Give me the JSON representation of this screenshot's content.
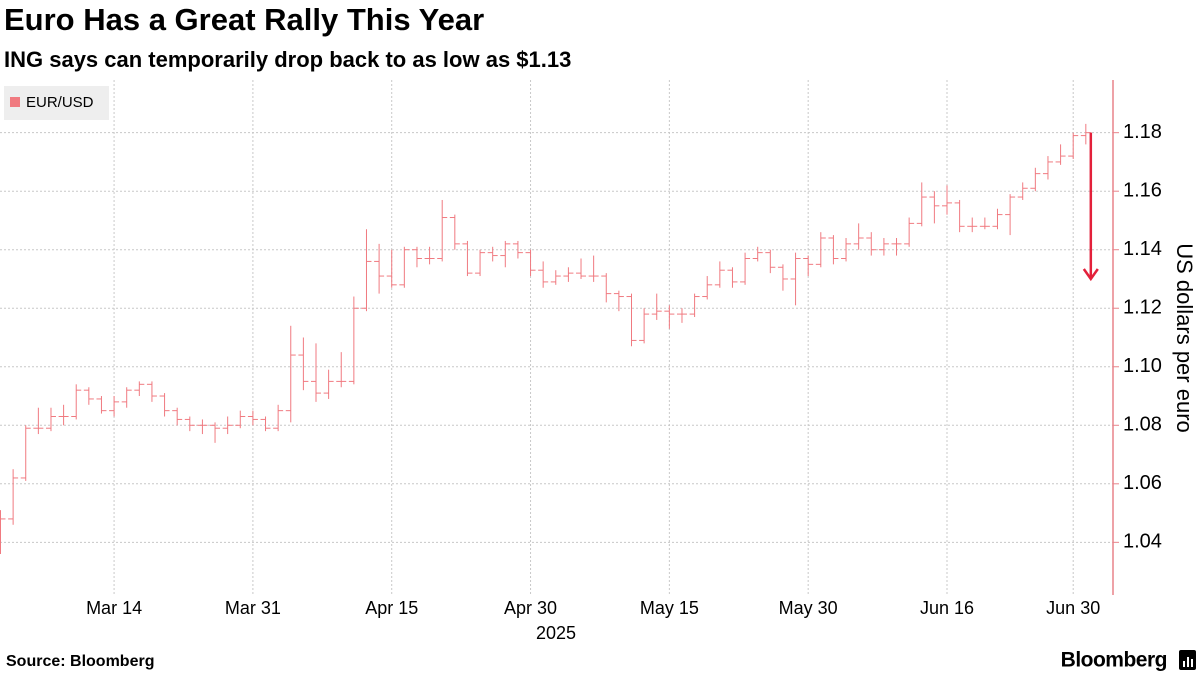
{
  "chart_data": {
    "type": "ohlc",
    "title": "Euro Has a Great Rally This Year",
    "subtitle": "ING says can temporarily drop back to as low as $1.13",
    "ylabel": "US dollars per euro",
    "xlabel": "2025",
    "source": "Source: Bloomberg",
    "brand": "Bloomberg",
    "axis_color": "#e8838a",
    "grid": true,
    "legend": "top-left",
    "ylim": [
      1.022,
      1.198
    ],
    "yticks": [
      1.04,
      1.06,
      1.08,
      1.1,
      {
        "value": 1.1,
        "label": "1.10"
      },
      1.12,
      1.14,
      1.16,
      1.18
    ],
    "x": [
      "2025-03-03",
      "2025-03-04",
      "2025-03-05",
      "2025-03-06",
      "2025-03-07",
      "2025-03-10",
      "2025-03-11",
      "2025-03-12",
      "2025-03-13",
      "2025-03-14",
      "2025-03-17",
      "2025-03-18",
      "2025-03-19",
      "2025-03-20",
      "2025-03-21",
      "2025-03-24",
      "2025-03-25",
      "2025-03-26",
      "2025-03-27",
      "2025-03-28",
      "2025-03-31",
      "2025-04-01",
      "2025-04-02",
      "2025-04-03",
      "2025-04-04",
      "2025-04-07",
      "2025-04-08",
      "2025-04-09",
      "2025-04-10",
      "2025-04-11",
      "2025-04-14",
      "2025-04-15",
      "2025-04-16",
      "2025-04-17",
      "2025-04-18",
      "2025-04-21",
      "2025-04-22",
      "2025-04-23",
      "2025-04-24",
      "2025-04-25",
      "2025-04-28",
      "2025-04-29",
      "2025-04-30",
      "2025-05-01",
      "2025-05-02",
      "2025-05-05",
      "2025-05-06",
      "2025-05-07",
      "2025-05-08",
      "2025-05-09",
      "2025-05-12",
      "2025-05-13",
      "2025-05-14",
      "2025-05-15",
      "2025-05-16",
      "2025-05-19",
      "2025-05-20",
      "2025-05-21",
      "2025-05-22",
      "2025-05-23",
      "2025-05-26",
      "2025-05-27",
      "2025-05-28",
      "2025-05-29",
      "2025-05-30",
      "2025-06-02",
      "2025-06-03",
      "2025-06-04",
      "2025-06-05",
      "2025-06-06",
      "2025-06-09",
      "2025-06-10",
      "2025-06-11",
      "2025-06-12",
      "2025-06-13",
      "2025-06-16",
      "2025-06-17",
      "2025-06-18",
      "2025-06-19",
      "2025-06-20",
      "2025-06-23",
      "2025-06-24",
      "2025-06-25",
      "2025-06-26",
      "2025-06-27",
      "2025-06-30",
      "2025-07-01"
    ],
    "xticks": [
      {
        "value": "2025-03-14",
        "label": "Mar 14"
      },
      {
        "value": "2025-03-31",
        "label": "Mar 31"
      },
      {
        "value": "2025-04-15",
        "label": "Apr 15"
      },
      {
        "value": "2025-04-30",
        "label": "Apr 30"
      },
      {
        "value": "2025-05-15",
        "label": "May 15"
      },
      {
        "value": "2025-05-30",
        "label": "May 30"
      },
      {
        "value": "2025-06-16",
        "label": "Jun 16"
      },
      {
        "value": "2025-06-30",
        "label": "Jun 30"
      }
    ],
    "series": [
      {
        "name": "EUR/USD",
        "color": "#f07a80",
        "open": [
          1.04,
          1.048,
          1.062,
          1.079,
          1.079,
          1.083,
          1.083,
          1.092,
          1.089,
          1.085,
          1.088,
          1.092,
          1.094,
          1.09,
          1.085,
          1.082,
          1.08,
          1.08,
          1.079,
          1.08,
          1.083,
          1.082,
          1.079,
          1.085,
          1.104,
          1.095,
          1.091,
          1.095,
          1.095,
          1.12,
          1.136,
          1.131,
          1.128,
          1.14,
          1.137,
          1.137,
          1.151,
          1.142,
          1.132,
          1.139,
          1.138,
          1.142,
          1.139,
          1.133,
          1.129,
          1.131,
          1.132,
          1.131,
          1.131,
          1.125,
          1.124,
          1.109,
          1.118,
          1.119,
          1.118,
          1.118,
          1.124,
          1.128,
          1.133,
          1.129,
          1.137,
          1.139,
          1.134,
          1.13,
          1.137,
          1.135,
          1.144,
          1.137,
          1.142,
          1.144,
          1.14,
          1.142,
          1.142,
          1.149,
          1.158,
          1.155,
          1.156,
          1.148,
          1.148,
          1.148,
          1.152,
          1.158,
          1.161,
          1.166,
          1.17,
          1.172,
          1.179
        ],
        "high": [
          1.051,
          1.065,
          1.08,
          1.086,
          1.086,
          1.087,
          1.094,
          1.093,
          1.09,
          1.09,
          1.093,
          1.095,
          1.095,
          1.091,
          1.086,
          1.083,
          1.082,
          1.081,
          1.083,
          1.085,
          1.085,
          1.083,
          1.087,
          1.114,
          1.11,
          1.108,
          1.099,
          1.105,
          1.124,
          1.147,
          1.142,
          1.14,
          1.141,
          1.141,
          1.141,
          1.157,
          1.152,
          1.143,
          1.14,
          1.141,
          1.143,
          1.143,
          1.14,
          1.136,
          1.133,
          1.134,
          1.137,
          1.138,
          1.132,
          1.126,
          1.125,
          1.12,
          1.125,
          1.121,
          1.12,
          1.125,
          1.131,
          1.136,
          1.134,
          1.139,
          1.141,
          1.14,
          1.135,
          1.139,
          1.138,
          1.146,
          1.145,
          1.144,
          1.149,
          1.146,
          1.144,
          1.144,
          1.151,
          1.163,
          1.16,
          1.162,
          1.157,
          1.151,
          1.151,
          1.154,
          1.159,
          1.163,
          1.168,
          1.172,
          1.176,
          1.18,
          1.183
        ],
        "low": [
          1.036,
          1.046,
          1.061,
          1.077,
          1.078,
          1.08,
          1.082,
          1.087,
          1.084,
          1.083,
          1.086,
          1.09,
          1.088,
          1.083,
          1.08,
          1.078,
          1.077,
          1.074,
          1.077,
          1.079,
          1.08,
          1.078,
          1.078,
          1.081,
          1.092,
          1.088,
          1.089,
          1.093,
          1.094,
          1.119,
          1.125,
          1.127,
          1.127,
          1.134,
          1.135,
          1.136,
          1.14,
          1.131,
          1.131,
          1.136,
          1.134,
          1.137,
          1.131,
          1.127,
          1.128,
          1.129,
          1.13,
          1.129,
          1.122,
          1.119,
          1.107,
          1.108,
          1.116,
          1.113,
          1.115,
          1.117,
          1.123,
          1.127,
          1.127,
          1.128,
          1.136,
          1.132,
          1.126,
          1.121,
          1.131,
          1.134,
          1.135,
          1.136,
          1.14,
          1.138,
          1.138,
          1.138,
          1.141,
          1.148,
          1.149,
          1.152,
          1.146,
          1.146,
          1.147,
          1.147,
          1.145,
          1.157,
          1.16,
          1.164,
          1.169,
          1.171,
          1.176
        ],
        "close": [
          1.048,
          1.062,
          1.079,
          1.079,
          1.083,
          1.083,
          1.092,
          1.089,
          1.085,
          1.088,
          1.092,
          1.094,
          1.09,
          1.085,
          1.082,
          1.08,
          1.08,
          1.079,
          1.08,
          1.083,
          1.082,
          1.079,
          1.085,
          1.104,
          1.095,
          1.091,
          1.095,
          1.095,
          1.12,
          1.136,
          1.131,
          1.128,
          1.14,
          1.137,
          1.137,
          1.151,
          1.142,
          1.132,
          1.139,
          1.138,
          1.142,
          1.139,
          1.133,
          1.129,
          1.131,
          1.132,
          1.131,
          1.131,
          1.125,
          1.124,
          1.109,
          1.118,
          1.119,
          1.118,
          1.118,
          1.124,
          1.128,
          1.133,
          1.129,
          1.137,
          1.139,
          1.134,
          1.13,
          1.137,
          1.135,
          1.144,
          1.137,
          1.142,
          1.144,
          1.14,
          1.142,
          1.142,
          1.149,
          1.158,
          1.155,
          1.156,
          1.148,
          1.148,
          1.148,
          1.152,
          1.158,
          1.161,
          1.166,
          1.17,
          1.172,
          1.179,
          1.18
        ]
      }
    ],
    "arrow": {
      "x": "2025-07-01",
      "from": 1.18,
      "to": 1.13,
      "color": "#e3203a"
    }
  }
}
